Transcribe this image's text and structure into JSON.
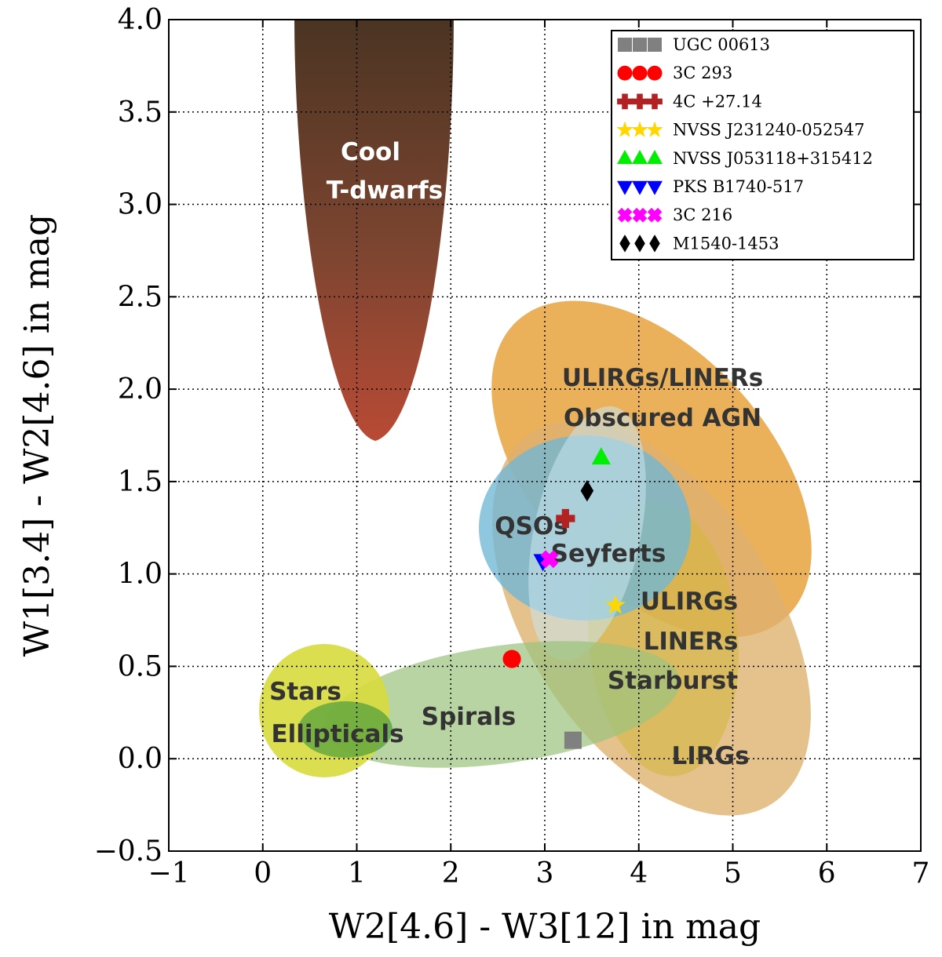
{
  "chart_data": {
    "type": "scatter",
    "title": "",
    "xlabel": "W2[4.6] - W3[12] in mag",
    "ylabel": "W1[3.4] - W2[4.6] in mag",
    "xlim": [
      -1,
      7
    ],
    "ylim": [
      -0.5,
      4.0
    ],
    "grid": true,
    "x_ticks": [
      -1,
      0,
      1,
      2,
      3,
      4,
      5,
      6,
      7
    ],
    "x_tick_labels": [
      "−1",
      "0",
      "1",
      "2",
      "3",
      "4",
      "5",
      "6",
      "7"
    ],
    "y_ticks": [
      -0.5,
      0.0,
      0.5,
      1.0,
      1.5,
      2.0,
      2.5,
      3.0,
      3.5,
      4.0
    ],
    "y_tick_labels": [
      "−0.5",
      "0.0",
      "0.5",
      "1.0",
      "1.5",
      "2.0",
      "2.5",
      "3.0",
      "3.5",
      "4.0"
    ],
    "legend_position": "top-right",
    "series": [
      {
        "name": "UGC 00613",
        "marker": "square",
        "color": "#808080",
        "x": 3.3,
        "y": 0.1
      },
      {
        "name": "3C 293",
        "marker": "circle",
        "color": "#ff0000",
        "x": 2.65,
        "y": 0.54
      },
      {
        "name": "4C +27.14",
        "marker": "plus",
        "color": "#b22222",
        "x": 3.22,
        "y": 1.3
      },
      {
        "name": "NVSS J231240-052547",
        "marker": "star",
        "color": "#ffd700",
        "x": 3.75,
        "y": 0.83
      },
      {
        "name": "NVSS J053118+315412",
        "marker": "triangle-up",
        "color": "#00ee00",
        "x": 3.6,
        "y": 1.63
      },
      {
        "name": "PKS B1740-517",
        "marker": "triangle-down",
        "color": "#0000ff",
        "x": 2.98,
        "y": 1.07
      },
      {
        "name": "3C 216",
        "marker": "x",
        "color": "#ff00ff",
        "x": 3.05,
        "y": 1.08
      },
      {
        "name": "M1540-1453",
        "marker": "diamond",
        "color": "#000000",
        "x": 3.45,
        "y": 1.45
      }
    ],
    "regions": [
      {
        "label": [
          "Cool",
          "T-dwarfs"
        ],
        "color": "#8b3a2a"
      },
      {
        "label": [
          "ULIRGs/LINERs",
          "Obscured AGN"
        ],
        "color": "#e8a33d"
      },
      {
        "label": [
          "LIRGs"
        ],
        "color": "#deb16f"
      },
      {
        "label": [
          "ULIRGs",
          "LINERs",
          "Starburst"
        ],
        "color": "#d4b63a"
      },
      {
        "label": [
          "QSOs"
        ],
        "color": "#6fb7d6"
      },
      {
        "label": [
          "Seyferts"
        ],
        "color": "#a8d4e0"
      },
      {
        "label": [
          "Spirals"
        ],
        "color": "#9cc47e"
      },
      {
        "label": [
          "Stars"
        ],
        "color": "#d7dc3c"
      },
      {
        "label": [
          "Ellipticals"
        ],
        "color": "#5fa84a"
      }
    ]
  }
}
